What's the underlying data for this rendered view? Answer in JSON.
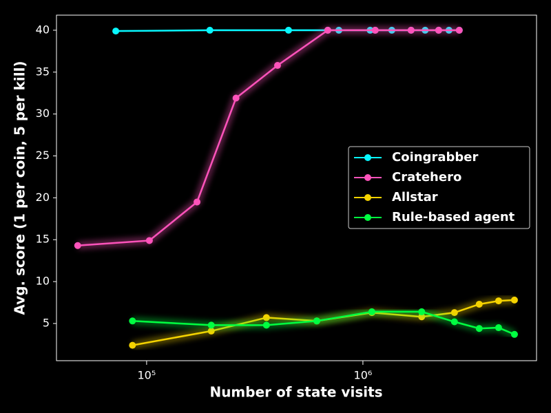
{
  "chart_data": {
    "type": "line",
    "x_label": "Number of state visits",
    "y_label": "Avg. score (1 per coin, 5 per kill)",
    "xscale": "log",
    "xlim": [
      38300,
      6350000
    ],
    "ylim": [
      0.56,
      41.8
    ],
    "xticks": [
      {
        "value": 100000,
        "label": "10⁵"
      },
      {
        "value": 1000000,
        "label": "10⁶"
      }
    ],
    "yticks": [
      5,
      10,
      15,
      20,
      25,
      30,
      35,
      40
    ],
    "legend": "center right",
    "glow": true,
    "series": [
      {
        "name": "Coingrabber",
        "color": "#08F7FE",
        "x": [
          72000,
          196000,
          453000,
          688000,
          774000,
          1080000,
          1140000,
          1360000,
          1670000,
          1940000,
          2240000,
          2500000,
          2790000
        ],
        "values": [
          39.9,
          40,
          40,
          40,
          40,
          40,
          40,
          40,
          40,
          40,
          40,
          40,
          40
        ]
      },
      {
        "name": "Cratehero",
        "color": "#FE53BB",
        "x": [
          48000,
          103000,
          171000,
          259000,
          403000,
          688000,
          1140000,
          1670000,
          2240000,
          2790000
        ],
        "values": [
          14.3,
          14.9,
          19.5,
          31.9,
          35.8,
          40,
          40,
          40,
          40,
          40
        ]
      },
      {
        "name": "Allstar",
        "color": "#F5D300",
        "x": [
          86000,
          199000,
          358000,
          612000,
          1100000,
          1870000,
          2650000,
          3450000,
          4240000,
          5020000
        ],
        "values": [
          2.4,
          4.1,
          5.7,
          5.3,
          6.3,
          5.8,
          6.3,
          7.3,
          7.7,
          7.8
        ]
      },
      {
        "name": "Rule-based agent",
        "color": "#00ff41",
        "x": [
          86000,
          199000,
          358000,
          612000,
          1100000,
          1870000,
          2650000,
          3450000,
          4240000,
          5020000
        ],
        "values": [
          5.3,
          4.8,
          4.8,
          5.3,
          6.4,
          6.4,
          5.2,
          4.4,
          4.5,
          3.7
        ]
      }
    ]
  }
}
